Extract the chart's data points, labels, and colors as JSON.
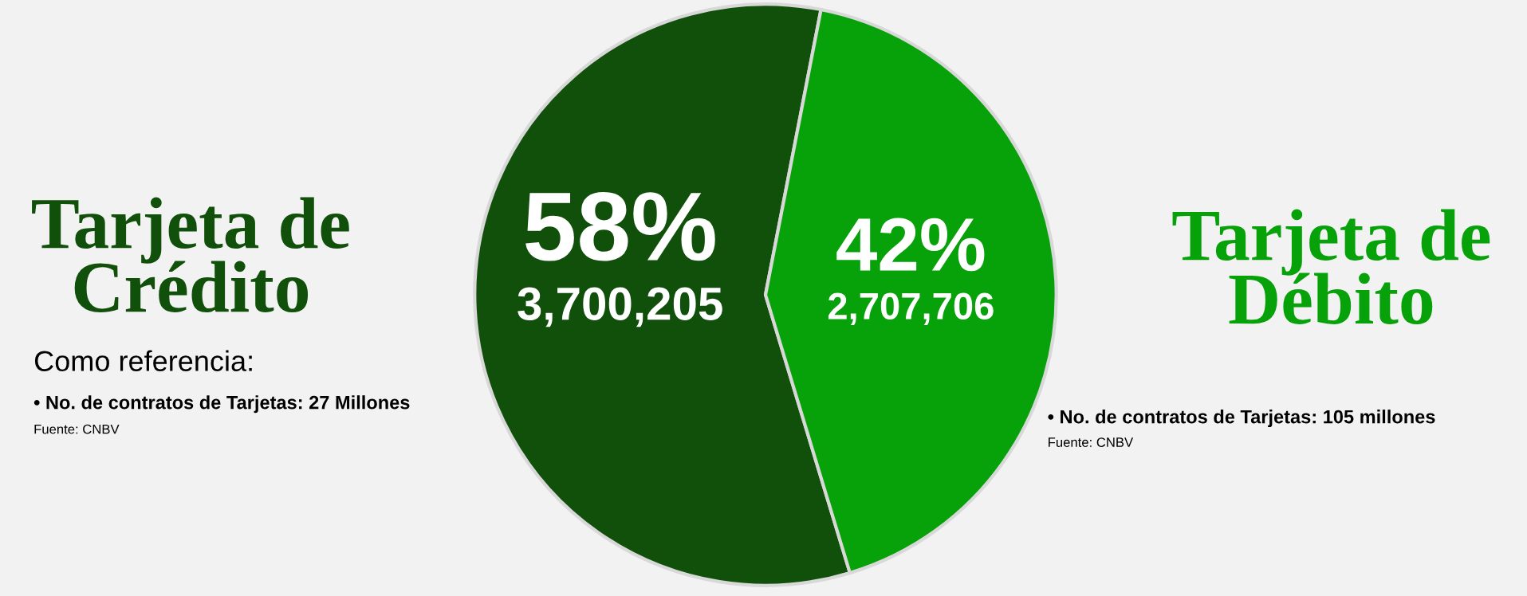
{
  "chart_data": {
    "type": "pie",
    "categories": [
      "Tarjeta de Crédito",
      "Tarjeta de Débito"
    ],
    "values": [
      3700205,
      2707706
    ],
    "colors": [
      "#10500a",
      "#07a20a"
    ],
    "value_labels": [
      "58%\n3,700,205",
      "42%\n2,707,706"
    ],
    "legend": false,
    "annotations": [
      "Como referencia:",
      "• No. de contratos de Tarjetas: 27 Millones",
      "Fuente: CNBV",
      "• No. de contratos de Tarjetas: 105 millones",
      "Fuente: CNBV"
    ]
  }
}
